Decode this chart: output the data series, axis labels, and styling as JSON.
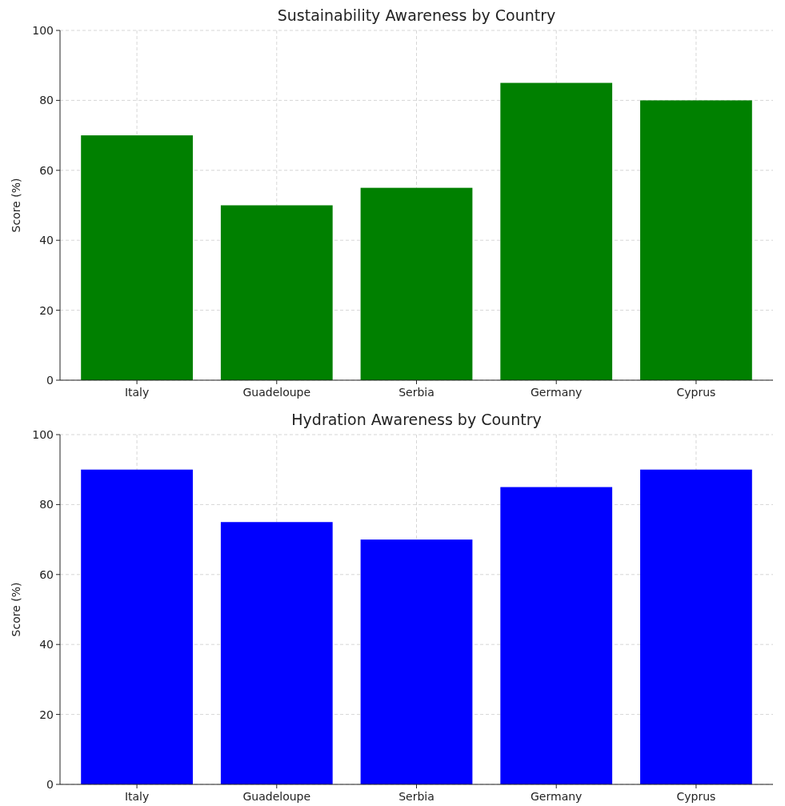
{
  "chart_data": [
    {
      "type": "bar",
      "title": "Sustainability Awareness by Country",
      "ylabel": "Score (%)",
      "categories": [
        "Italy",
        "Guadeloupe",
        "Serbia",
        "Germany",
        "Cyprus"
      ],
      "series": [
        {
          "color": "#008000",
          "values": [
            70,
            50,
            55,
            85,
            80
          ]
        }
      ],
      "ylim": [
        0,
        100
      ],
      "yticks": [
        0,
        20,
        40,
        60,
        80,
        100
      ],
      "grid": true
    },
    {
      "type": "bar",
      "title": "Hydration Awareness by Country",
      "ylabel": "Score (%)",
      "categories": [
        "Italy",
        "Guadeloupe",
        "Serbia",
        "Germany",
        "Cyprus"
      ],
      "series": [
        {
          "color": "#0000ff",
          "values": [
            90,
            75,
            70,
            85,
            90
          ]
        }
      ],
      "ylim": [
        0,
        100
      ],
      "yticks": [
        0,
        20,
        40,
        60,
        80,
        100
      ],
      "grid": true
    }
  ]
}
